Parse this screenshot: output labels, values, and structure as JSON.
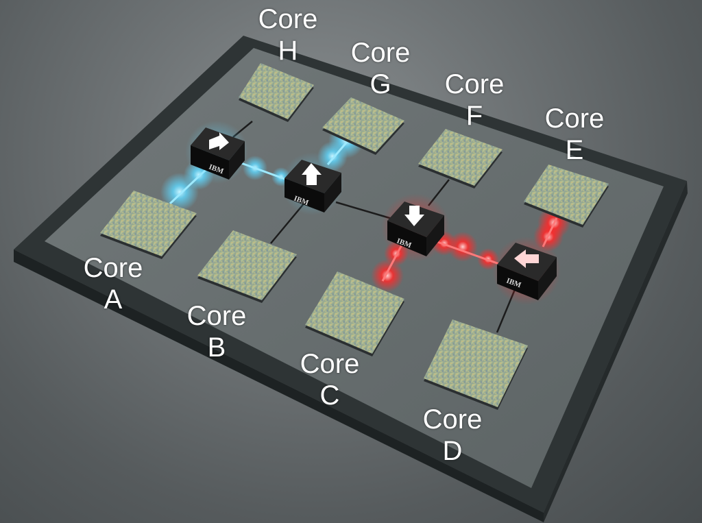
{
  "colors": {
    "link_blue": "#5fd8ff",
    "link_red": "#ff2a2a",
    "switch_face": "#0b0b0b",
    "arrow": "#ffffff"
  },
  "cores": [
    {
      "id": "A",
      "word": "Core",
      "letter": "A"
    },
    {
      "id": "B",
      "word": "Core",
      "letter": "B"
    },
    {
      "id": "C",
      "word": "Core",
      "letter": "C"
    },
    {
      "id": "D",
      "word": "Core",
      "letter": "D"
    },
    {
      "id": "E",
      "word": "Core",
      "letter": "E"
    },
    {
      "id": "F",
      "word": "Core",
      "letter": "F"
    },
    {
      "id": "G",
      "word": "Core",
      "letter": "G"
    },
    {
      "id": "H",
      "word": "Core",
      "letter": "H"
    }
  ],
  "switches": [
    {
      "id": "s1",
      "brand": "IBM",
      "arrow": "right",
      "glow": "blue"
    },
    {
      "id": "s2",
      "brand": "IBM",
      "arrow": "up",
      "glow": "blue"
    },
    {
      "id": "s3",
      "brand": "IBM",
      "arrow": "down",
      "glow": "red"
    },
    {
      "id": "s4",
      "brand": "IBM",
      "arrow": "left",
      "glow": "red"
    }
  ]
}
